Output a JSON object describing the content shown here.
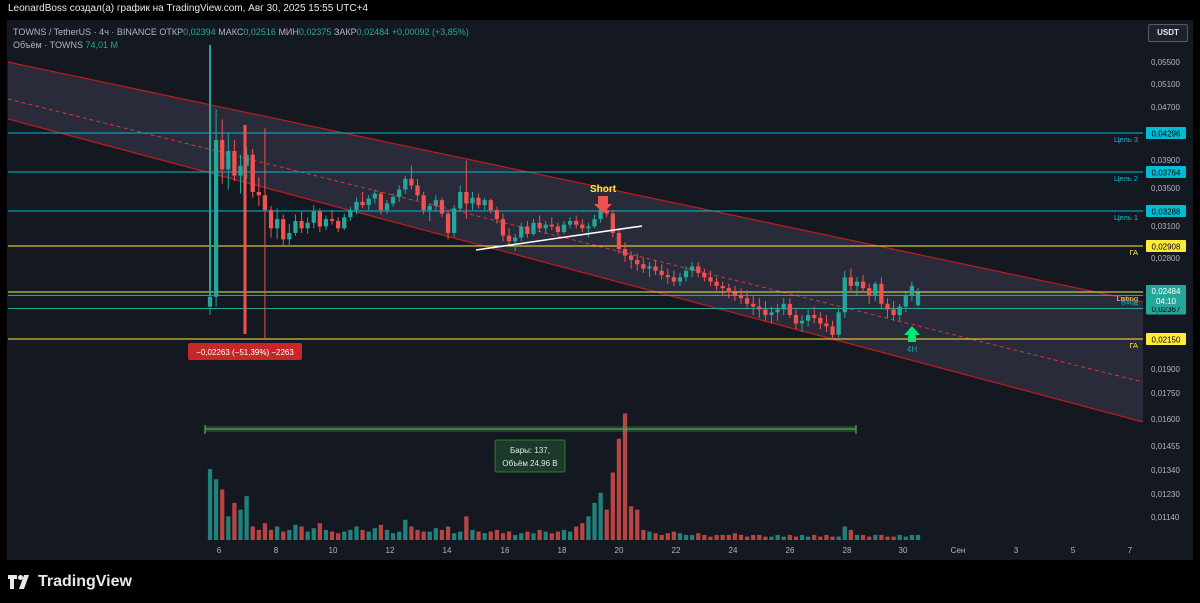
{
  "header": {
    "caption": "LeonardBoss создал(а) график на TradingView.com, Авг 30, 2025 15:55 UTC+4"
  },
  "legend": {
    "symbol": "TOWNS / TetherUS · 4ч · BINANCE",
    "open_label": "ОТКР",
    "open_value": "0,02394",
    "high_label": "МАКС",
    "high_value": "0,02516",
    "low_label": "МИН",
    "low_value": "0,02375",
    "close_label": "ЗАКР",
    "close_value": "0,02484",
    "change": "+0,00092 (+3,85%)",
    "volume_label": "Объём · TOWNS",
    "volume_value": "74,01 M"
  },
  "currency": "USDT",
  "brand": {
    "name": "TradingView"
  },
  "chart_data": {
    "type": "candlestick",
    "symbol": "TOWNS / TetherUS",
    "interval": "4ч",
    "exchange": "BINANCE",
    "x_axis": {
      "tick_labels": [
        "6",
        "8",
        "10",
        "12",
        "14",
        "16",
        "18",
        "20",
        "22",
        "24",
        "26",
        "28",
        "30",
        "Сен",
        "3",
        "5",
        "7"
      ]
    },
    "y_axis": {
      "tick_labels": [
        "0,05500",
        "0,05100",
        "0,04700",
        "0,03900",
        "0,03500",
        "0,03100",
        "0,02800",
        "0,01900",
        "0,01750",
        "0,01600",
        "0,01455",
        "0,01340",
        "0,01230",
        "0,01140"
      ]
    },
    "price_levels": [
      {
        "label": "Цель 3",
        "value": "0,04296",
        "color": "#00bcd4"
      },
      {
        "label": "Цель 2",
        "value": "0,03764",
        "color": "#00bcd4"
      },
      {
        "label": "Цель 1",
        "value": "0,03288",
        "color": "#00bcd4"
      },
      {
        "label": "ГА",
        "value": "0,02908",
        "color": "#ffeb3b"
      },
      {
        "label": "Listing",
        "value": "0,02484",
        "color": "#ffeb3b"
      },
      {
        "label": "Вход",
        "value": "0,02460",
        "color": "#00bcd4"
      },
      {
        "label": "",
        "value": "0,02367",
        "color": "#26a69a"
      },
      {
        "label": "ГА",
        "value": "0,02150",
        "color": "#ffeb3b"
      }
    ],
    "last_price_badge": {
      "value": "0,02484",
      "countdown": "04:10"
    },
    "candles": [
      [
        0.0238,
        0.0255,
        0.0232,
        0.0245
      ],
      [
        0.0245,
        0.0462,
        0.0238,
        0.042
      ],
      [
        0.042,
        0.0448,
        0.0362,
        0.038
      ],
      [
        0.038,
        0.043,
        0.0355,
        0.0405
      ],
      [
        0.0405,
        0.042,
        0.0365,
        0.0372
      ],
      [
        0.0372,
        0.04,
        0.035,
        0.0385
      ],
      [
        0.0385,
        0.041,
        0.0368,
        0.04
      ],
      [
        0.04,
        0.0408,
        0.0345,
        0.0352
      ],
      [
        0.0352,
        0.037,
        0.0335,
        0.0348
      ],
      [
        0.0348,
        0.0436,
        0.0215,
        0.033
      ],
      [
        0.033,
        0.0335,
        0.03,
        0.031
      ],
      [
        0.031,
        0.0332,
        0.0298,
        0.032
      ],
      [
        0.032,
        0.0325,
        0.029,
        0.0298
      ],
      [
        0.0298,
        0.0315,
        0.0292,
        0.0305
      ],
      [
        0.0305,
        0.0325,
        0.0302,
        0.0318
      ],
      [
        0.0318,
        0.0328,
        0.0305,
        0.031
      ],
      [
        0.031,
        0.0322,
        0.0304,
        0.0316
      ],
      [
        0.0316,
        0.0336,
        0.031,
        0.0328
      ],
      [
        0.0328,
        0.0332,
        0.0306,
        0.0312
      ],
      [
        0.0312,
        0.0324,
        0.0308,
        0.032
      ],
      [
        0.032,
        0.033,
        0.0314,
        0.0318
      ],
      [
        0.0318,
        0.0322,
        0.0306,
        0.031
      ],
      [
        0.031,
        0.0326,
        0.0308,
        0.0322
      ],
      [
        0.0322,
        0.0334,
        0.0318,
        0.033
      ],
      [
        0.033,
        0.0345,
        0.0325,
        0.034
      ],
      [
        0.034,
        0.0352,
        0.0332,
        0.0336
      ],
      [
        0.0336,
        0.0348,
        0.033,
        0.0344
      ],
      [
        0.0344,
        0.0355,
        0.0338,
        0.035
      ],
      [
        0.035,
        0.0352,
        0.0325,
        0.033
      ],
      [
        0.033,
        0.0342,
        0.0326,
        0.0338
      ],
      [
        0.0338,
        0.035,
        0.0334,
        0.0346
      ],
      [
        0.0346,
        0.036,
        0.034,
        0.0355
      ],
      [
        0.0355,
        0.0372,
        0.035,
        0.0368
      ],
      [
        0.0368,
        0.0385,
        0.0355,
        0.036
      ],
      [
        0.036,
        0.0368,
        0.0342,
        0.0348
      ],
      [
        0.0348,
        0.0352,
        0.0325,
        0.033
      ],
      [
        0.033,
        0.0338,
        0.0318,
        0.0335
      ],
      [
        0.0335,
        0.0348,
        0.0328,
        0.0342
      ],
      [
        0.0342,
        0.0345,
        0.0322,
        0.0326
      ],
      [
        0.0326,
        0.033,
        0.0298,
        0.0305
      ],
      [
        0.0305,
        0.0336,
        0.03,
        0.0332
      ],
      [
        0.0332,
        0.036,
        0.0328,
        0.0352
      ],
      [
        0.0352,
        0.0392,
        0.032,
        0.0338
      ],
      [
        0.0338,
        0.0352,
        0.033,
        0.0345
      ],
      [
        0.0345,
        0.035,
        0.0332,
        0.0336
      ],
      [
        0.0336,
        0.0345,
        0.033,
        0.0342
      ],
      [
        0.0342,
        0.0344,
        0.0326,
        0.033
      ],
      [
        0.033,
        0.0334,
        0.0315,
        0.032
      ],
      [
        0.032,
        0.0326,
        0.0296,
        0.0302
      ],
      [
        0.0302,
        0.031,
        0.0292,
        0.0296
      ],
      [
        0.0296,
        0.0304,
        0.0286,
        0.03
      ],
      [
        0.03,
        0.0316,
        0.0296,
        0.0312
      ],
      [
        0.0312,
        0.0318,
        0.03,
        0.0304
      ],
      [
        0.0304,
        0.032,
        0.0302,
        0.0316
      ],
      [
        0.0316,
        0.0324,
        0.0306,
        0.031
      ],
      [
        0.031,
        0.0318,
        0.0304,
        0.0314
      ],
      [
        0.0314,
        0.0322,
        0.0308,
        0.0312
      ],
      [
        0.0312,
        0.0316,
        0.0302,
        0.0306
      ],
      [
        0.0306,
        0.0318,
        0.0304,
        0.0314
      ],
      [
        0.0314,
        0.0322,
        0.031,
        0.0318
      ],
      [
        0.0318,
        0.0324,
        0.031,
        0.0314
      ],
      [
        0.0314,
        0.032,
        0.0306,
        0.031
      ],
      [
        0.031,
        0.0316,
        0.03,
        0.0312
      ],
      [
        0.0312,
        0.0325,
        0.031,
        0.032
      ],
      [
        0.032,
        0.0334,
        0.0316,
        0.033
      ],
      [
        0.033,
        0.0336,
        0.0322,
        0.0326
      ],
      [
        0.0326,
        0.033,
        0.03,
        0.0305
      ],
      [
        0.0305,
        0.031,
        0.0284,
        0.0288
      ],
      [
        0.0288,
        0.0295,
        0.0276,
        0.0282
      ],
      [
        0.0282,
        0.0286,
        0.027,
        0.0278
      ],
      [
        0.0278,
        0.0284,
        0.0268,
        0.0274
      ],
      [
        0.0274,
        0.028,
        0.0266,
        0.027
      ],
      [
        0.027,
        0.0276,
        0.0262,
        0.0272
      ],
      [
        0.0272,
        0.0278,
        0.0264,
        0.0268
      ],
      [
        0.0268,
        0.0274,
        0.026,
        0.0264
      ],
      [
        0.0264,
        0.027,
        0.0256,
        0.0262
      ],
      [
        0.0262,
        0.0268,
        0.0254,
        0.0258
      ],
      [
        0.0258,
        0.0266,
        0.0254,
        0.0262
      ],
      [
        0.0262,
        0.0272,
        0.0258,
        0.0268
      ],
      [
        0.0268,
        0.0276,
        0.0262,
        0.0272
      ],
      [
        0.0272,
        0.0276,
        0.0262,
        0.0266
      ],
      [
        0.0266,
        0.027,
        0.0258,
        0.0262
      ],
      [
        0.0262,
        0.0268,
        0.0254,
        0.0258
      ],
      [
        0.0258,
        0.0262,
        0.025,
        0.0254
      ],
      [
        0.0254,
        0.0258,
        0.0246,
        0.0252
      ],
      [
        0.0252,
        0.0256,
        0.0244,
        0.0248
      ],
      [
        0.0248,
        0.0254,
        0.0242,
        0.0246
      ],
      [
        0.0246,
        0.0252,
        0.024,
        0.0244
      ],
      [
        0.0244,
        0.025,
        0.0236,
        0.024
      ],
      [
        0.024,
        0.0246,
        0.0232,
        0.0238
      ],
      [
        0.0238,
        0.0244,
        0.023,
        0.0236
      ],
      [
        0.0236,
        0.0242,
        0.0228,
        0.0232
      ],
      [
        0.0232,
        0.0238,
        0.0226,
        0.0234
      ],
      [
        0.0234,
        0.024,
        0.0228,
        0.0236
      ],
      [
        0.0236,
        0.0244,
        0.0232,
        0.024
      ],
      [
        0.024,
        0.0244,
        0.023,
        0.0232
      ],
      [
        0.0232,
        0.0236,
        0.0222,
        0.0226
      ],
      [
        0.0226,
        0.0232,
        0.022,
        0.0228
      ],
      [
        0.0228,
        0.0236,
        0.0224,
        0.0232
      ],
      [
        0.0232,
        0.0238,
        0.0226,
        0.023
      ],
      [
        0.023,
        0.0234,
        0.0222,
        0.0226
      ],
      [
        0.0226,
        0.0232,
        0.022,
        0.0224
      ],
      [
        0.0224,
        0.0228,
        0.0214,
        0.0218
      ],
      [
        0.0218,
        0.0236,
        0.0216,
        0.0234
      ],
      [
        0.0234,
        0.0268,
        0.023,
        0.0262
      ],
      [
        0.0262,
        0.027,
        0.0248,
        0.0254
      ],
      [
        0.0254,
        0.0262,
        0.0246,
        0.0258
      ],
      [
        0.0258,
        0.0264,
        0.0248,
        0.0252
      ],
      [
        0.0252,
        0.0256,
        0.024,
        0.0246
      ],
      [
        0.0246,
        0.0258,
        0.0242,
        0.0256
      ],
      [
        0.0256,
        0.0262,
        0.0236,
        0.024
      ],
      [
        0.024,
        0.0244,
        0.023,
        0.0236
      ],
      [
        0.0236,
        0.0242,
        0.0228,
        0.0232
      ],
      [
        0.0232,
        0.024,
        0.0228,
        0.0238
      ],
      [
        0.0238,
        0.0248,
        0.0234,
        0.0246
      ],
      [
        0.0246,
        0.0258,
        0.0242,
        0.0254
      ],
      [
        0.0239,
        0.0252,
        0.0238,
        0.0248
      ]
    ],
    "volume_pane": {
      "max_tick": "0,01455"
    },
    "annotations": {
      "short_label": "Short",
      "drop_label": "−0,02263 (−51,39%) −2263",
      "range_bars_label": "Бары: 137,",
      "range_volume_label": "Объём 24,96 B",
      "signal_label": "4H"
    },
    "channel": "descending"
  }
}
